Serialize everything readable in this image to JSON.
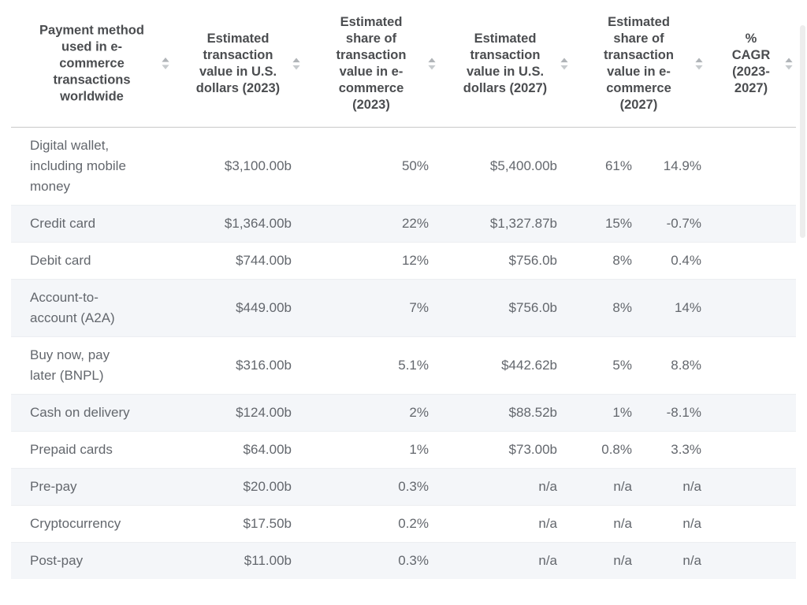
{
  "chart_data": {
    "type": "table",
    "columns": [
      {
        "label": "Payment method used in e-commerce transactions worldwide",
        "align": "left",
        "sortable": true
      },
      {
        "label": "Estimated transaction value in U.S. dollars (2023)",
        "align": "right",
        "sortable": true
      },
      {
        "label": "Estimated share of transaction value in e-commerce (2023)",
        "align": "right",
        "sortable": true
      },
      {
        "label": "Estimated transaction value in U.S. dollars (2027)",
        "align": "right",
        "sortable": true
      },
      {
        "label": "Estimated share of transaction value in e-commerce (2027)",
        "align": "right",
        "sortable": true
      },
      {
        "label": "% CAGR (2023-2027)",
        "align": "right",
        "sortable": true
      }
    ],
    "rows": [
      [
        "Digital wallet, including mobile money",
        "$3,100.00b",
        "50%",
        "$5,400.00b",
        "61%",
        "14.9%"
      ],
      [
        "Credit card",
        "$1,364.00b",
        "22%",
        "$1,327.87b",
        "15%",
        "-0.7%"
      ],
      [
        "Debit card",
        "$744.00b",
        "12%",
        "$756.0b",
        "8%",
        "0.4%"
      ],
      [
        "Account-to-account (A2A)",
        "$449.00b",
        "7%",
        "$756.0b",
        "8%",
        "14%"
      ],
      [
        "Buy now, pay later (BNPL)",
        "$316.00b",
        "5.1%",
        "$442.62b",
        "5%",
        "8.8%"
      ],
      [
        "Cash on delivery",
        "$124.00b",
        "2%",
        "$88.52b",
        "1%",
        "-8.1%"
      ],
      [
        "Prepaid cards",
        "$64.00b",
        "1%",
        "$73.00b",
        "0.8%",
        "3.3%"
      ],
      [
        "Pre-pay",
        "$20.00b",
        "0.3%",
        "n/a",
        "n/a",
        "n/a"
      ],
      [
        "Cryptocurrency",
        "$17.50b",
        "0.2%",
        "n/a",
        "n/a",
        "n/a"
      ],
      [
        "Post-pay",
        "$11.00b",
        "0.3%",
        "n/a",
        "n/a",
        "n/a"
      ]
    ],
    "layout": {
      "zebra_striping": true,
      "header_position": "top",
      "grid": "horizontal-only"
    }
  },
  "icons": {
    "sort": "sort-arrows-up-down"
  },
  "colors": {
    "header_text": "#4b4d50",
    "body_text": "#63676d",
    "zebra_row": "#f4f6f9",
    "header_divider": "#c9c9c9",
    "row_divider": "#eceef1",
    "sort_arrow_up": "#b0b4b8",
    "sort_arrow_down": "#c6cacd"
  }
}
